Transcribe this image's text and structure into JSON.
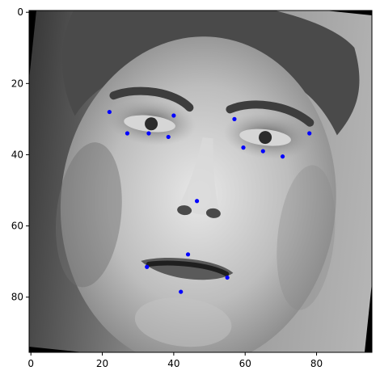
{
  "chart_data": {
    "type": "scatter",
    "image": "grayscale face photo (96x96 px), rotated slightly, black borders at corners",
    "xlim": [
      -0.5,
      95.5
    ],
    "ylim": [
      95.5,
      -0.5
    ],
    "y_inverted": true,
    "x_ticks": [
      0,
      20,
      40,
      60,
      80
    ],
    "y_ticks": [
      0,
      20,
      40,
      60,
      80
    ],
    "grid": false,
    "marker_color": "#0000ff",
    "points": [
      {
        "x": 22.0,
        "y": 28.0
      },
      {
        "x": 40.0,
        "y": 29.0
      },
      {
        "x": 57.0,
        "y": 30.0
      },
      {
        "x": 78.0,
        "y": 34.0
      },
      {
        "x": 27.0,
        "y": 34.0
      },
      {
        "x": 33.0,
        "y": 34.0
      },
      {
        "x": 38.5,
        "y": 35.0
      },
      {
        "x": 59.5,
        "y": 38.0
      },
      {
        "x": 65.0,
        "y": 39.0
      },
      {
        "x": 70.5,
        "y": 40.5
      },
      {
        "x": 46.5,
        "y": 53.0
      },
      {
        "x": 44.0,
        "y": 68.0
      },
      {
        "x": 32.5,
        "y": 71.5
      },
      {
        "x": 55.0,
        "y": 74.5
      },
      {
        "x": 42.0,
        "y": 78.5
      }
    ]
  }
}
